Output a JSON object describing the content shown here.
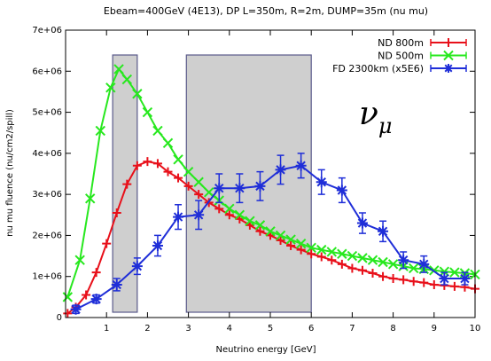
{
  "chart_data": {
    "type": "line",
    "title": "Ebeam=400GeV (4E13), DP L=350m, R=2m, DUMP=35m (nu mu)",
    "xlabel": "Neutrino energy [GeV]",
    "ylabel": "nu mu fluence (nu/cm2/spill)",
    "xlim": [
      0,
      10
    ],
    "ylim": [
      0,
      7000000
    ],
    "x_ticks": [
      1,
      2,
      3,
      4,
      5,
      6,
      7,
      8,
      9,
      10
    ],
    "y_ticks": [
      {
        "value": 0,
        "label": "0"
      },
      {
        "value": 1000000,
        "label": "1e+06"
      },
      {
        "value": 2000000,
        "label": "2e+06"
      },
      {
        "value": 3000000,
        "label": "3e+06"
      },
      {
        "value": 4000000,
        "label": "4e+06"
      },
      {
        "value": 5000000,
        "label": "5e+06"
      },
      {
        "value": 6000000,
        "label": "6e+06"
      },
      {
        "value": 7000000,
        "label": "7e+06"
      }
    ],
    "legend_position": "top-right",
    "annotation": {
      "main": "ν",
      "sub": "μ"
    },
    "shaded_regions": [
      [
        1.15,
        1.75
      ],
      [
        2.95,
        6.0
      ]
    ],
    "series": [
      {
        "name": "ND 800m",
        "color": "#e8101a",
        "marker": "plus",
        "x": [
          0.05,
          0.25,
          0.5,
          0.75,
          1,
          1.25,
          1.5,
          1.75,
          2,
          2.25,
          2.5,
          2.75,
          3,
          3.25,
          3.5,
          3.75,
          4,
          4.25,
          4.5,
          4.75,
          5,
          5.25,
          5.5,
          5.75,
          6,
          6.25,
          6.5,
          6.75,
          7,
          7.25,
          7.5,
          7.75,
          8,
          8.25,
          8.5,
          8.75,
          9,
          9.25,
          9.5,
          9.75,
          10
        ],
        "y": [
          100000,
          250000,
          550000,
          1100000,
          1800000,
          2550000,
          3250000,
          3700000,
          3800000,
          3750000,
          3550000,
          3400000,
          3200000,
          3000000,
          2800000,
          2650000,
          2500000,
          2400000,
          2250000,
          2100000,
          2000000,
          1880000,
          1750000,
          1650000,
          1550000,
          1480000,
          1400000,
          1300000,
          1200000,
          1150000,
          1080000,
          1000000,
          950000,
          920000,
          880000,
          850000,
          800000,
          780000,
          760000,
          740000,
          700000
        ]
      },
      {
        "name": "ND 500m",
        "color": "#27e81e",
        "marker": "x",
        "x": [
          0.05,
          0.35,
          0.6,
          0.85,
          1.1,
          1.3,
          1.5,
          1.75,
          2,
          2.25,
          2.5,
          2.75,
          3,
          3.25,
          3.5,
          3.75,
          4,
          4.25,
          4.5,
          4.75,
          5,
          5.25,
          5.5,
          5.75,
          6,
          6.25,
          6.5,
          6.75,
          7,
          7.25,
          7.5,
          7.75,
          8,
          8.25,
          8.5,
          8.75,
          9,
          9.25,
          9.5,
          9.75,
          10
        ],
        "y": [
          500000,
          1400000,
          2900000,
          4550000,
          5600000,
          6050000,
          5800000,
          5450000,
          5000000,
          4550000,
          4250000,
          3850000,
          3550000,
          3300000,
          3050000,
          2850000,
          2650000,
          2500000,
          2350000,
          2250000,
          2100000,
          2000000,
          1900000,
          1800000,
          1700000,
          1650000,
          1600000,
          1550000,
          1500000,
          1450000,
          1400000,
          1350000,
          1300000,
          1250000,
          1200000,
          1180000,
          1150000,
          1120000,
          1100000,
          1080000,
          1050000
        ]
      },
      {
        "name": "FD 2300km (x5E6)",
        "color": "#1f2ed8",
        "marker": "star",
        "x": [
          0.25,
          0.75,
          1.25,
          1.75,
          2.25,
          2.75,
          3.25,
          3.75,
          4.25,
          4.75,
          5.25,
          5.75,
          6.25,
          6.75,
          7.25,
          7.75,
          8.25,
          8.75,
          9.25,
          9.75
        ],
        "y": [
          200000,
          450000,
          800000,
          1250000,
          1750000,
          2450000,
          2500000,
          3150000,
          3150000,
          3200000,
          3600000,
          3700000,
          3300000,
          3100000,
          2300000,
          2100000,
          1400000,
          1300000,
          950000,
          950000
        ],
        "err": [
          100000,
          100000,
          150000,
          200000,
          250000,
          300000,
          350000,
          350000,
          350000,
          350000,
          350000,
          300000,
          300000,
          300000,
          250000,
          250000,
          200000,
          200000,
          150000,
          150000
        ]
      }
    ]
  }
}
